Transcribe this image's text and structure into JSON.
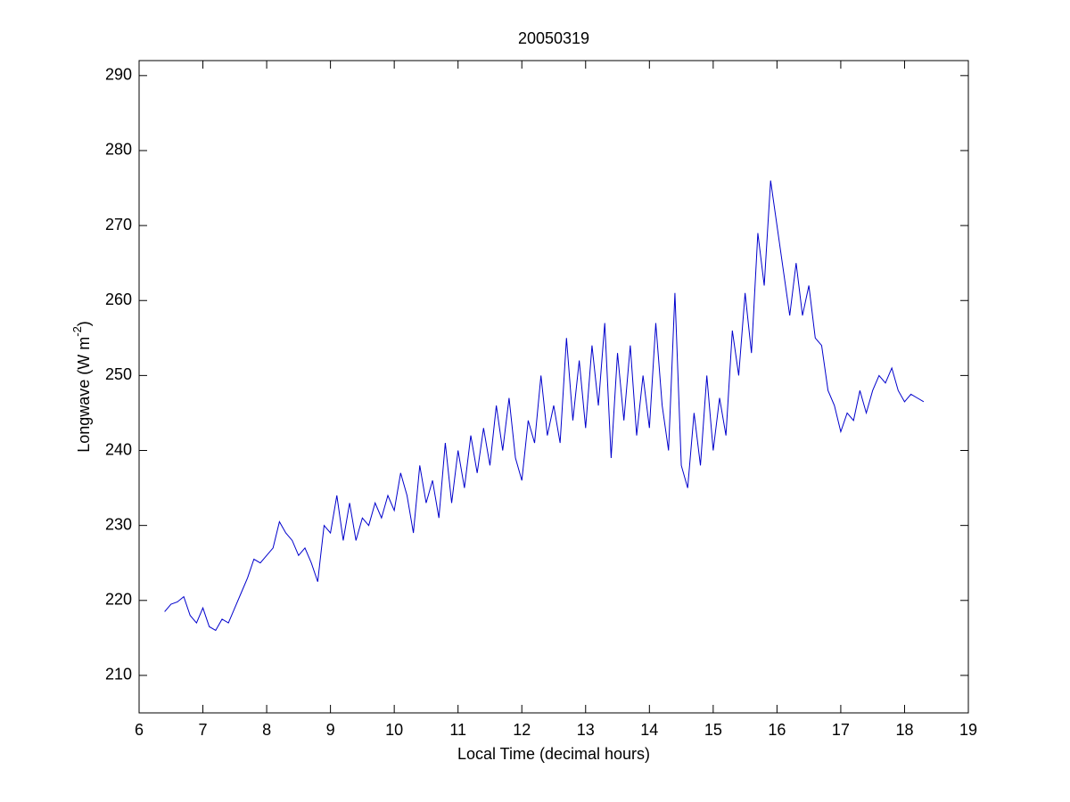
{
  "chart_data": {
    "type": "line",
    "title": "20050319",
    "xlabel": "Local Time (decimal hours)",
    "ylabel": "Longwave (W m",
    "ylabel_sup": "-2",
    "ylabel_end": ")",
    "xlim": [
      6,
      19
    ],
    "xticks": [
      6,
      7,
      8,
      9,
      10,
      11,
      12,
      13,
      14,
      15,
      16,
      17,
      18,
      19
    ],
    "ylim": [
      205,
      292
    ],
    "yticks": [
      210,
      220,
      230,
      240,
      250,
      260,
      270,
      280,
      290
    ],
    "grid": false,
    "series": [
      {
        "color": "#0000cc",
        "x": [
          6.4,
          6.5,
          6.6,
          6.7,
          6.8,
          6.9,
          7.0,
          7.1,
          7.2,
          7.3,
          7.4,
          7.5,
          7.6,
          7.7,
          7.8,
          7.9,
          8.0,
          8.1,
          8.2,
          8.3,
          8.4,
          8.5,
          8.6,
          8.7,
          8.8,
          8.9,
          9.0,
          9.1,
          9.2,
          9.3,
          9.4,
          9.5,
          9.6,
          9.7,
          9.8,
          9.9,
          10.0,
          10.1,
          10.2,
          10.3,
          10.4,
          10.5,
          10.6,
          10.7,
          10.8,
          10.9,
          11.0,
          11.1,
          11.2,
          11.3,
          11.4,
          11.5,
          11.6,
          11.7,
          11.8,
          11.9,
          12.0,
          12.1,
          12.2,
          12.3,
          12.4,
          12.5,
          12.6,
          12.7,
          12.8,
          12.9,
          13.0,
          13.1,
          13.2,
          13.3,
          13.4,
          13.5,
          13.6,
          13.7,
          13.8,
          13.9,
          14.0,
          14.1,
          14.2,
          14.3,
          14.4,
          14.5,
          14.6,
          14.7,
          14.8,
          14.9,
          15.0,
          15.1,
          15.2,
          15.3,
          15.4,
          15.5,
          15.6,
          15.7,
          15.8,
          15.9,
          16.0,
          16.1,
          16.2,
          16.3,
          16.4,
          16.5,
          16.6,
          16.7,
          16.8,
          16.9,
          17.0,
          17.1,
          17.2,
          17.3,
          17.4,
          17.5,
          17.6,
          17.7,
          17.8,
          17.9,
          18.0,
          18.1,
          18.2,
          18.3
        ],
        "values": [
          218.5,
          219.5,
          219.8,
          220.5,
          218,
          217,
          219,
          216.5,
          216,
          217.5,
          217,
          219,
          221,
          223,
          225.5,
          225,
          226,
          227,
          230.5,
          229,
          228,
          226,
          227,
          225,
          222.5,
          230,
          229,
          234,
          228,
          233,
          228,
          231,
          230,
          233,
          231,
          234,
          232,
          237,
          234,
          229,
          238,
          233,
          236,
          231,
          241,
          233,
          240,
          235,
          242,
          237,
          243,
          238,
          246,
          240,
          247,
          239,
          236,
          244,
          241,
          250,
          242,
          246,
          241,
          255,
          244,
          252,
          243,
          254,
          246,
          257,
          239,
          253,
          244,
          254,
          242,
          250,
          243,
          257,
          246,
          240,
          261,
          238,
          235,
          245,
          238,
          250,
          240,
          247,
          242,
          256,
          250,
          261,
          253,
          269,
          262,
          276,
          270,
          264,
          258,
          265,
          258,
          262,
          255,
          254,
          248,
          246,
          242.5,
          245,
          244,
          248,
          245,
          248,
          250,
          249,
          251,
          248,
          246.5,
          247.5,
          247,
          246.5
        ]
      }
    ]
  }
}
